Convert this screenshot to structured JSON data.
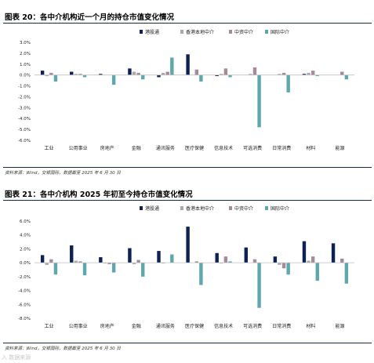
{
  "colors": {
    "hk_connect": "#0d2155",
    "hk_local": "#a9a9a9",
    "chinese": "#a48a9a",
    "intl": "#5ea8ad"
  },
  "figures": [
    {
      "title": "图表 20：各中介机构近一个月的持仓市值变化情况",
      "source": "资料来源：Wind，交银国际，数据截至 2025 年 6 月 30 日"
    },
    {
      "title": "图表 21：各中介机构 2025 年初至今持仓市值变化情况",
      "source": "资料来源：Wind，交银国际，数据截至 2025 年 6 月 30 日"
    }
  ],
  "watermark": "入 数据来源",
  "chart_data": [
    {
      "type": "bar",
      "categories": [
        "工业",
        "公用事业",
        "房地产",
        "金融",
        "通讯服务",
        "医疗保健",
        "信息技术",
        "可选消费",
        "日常消费",
        "材料",
        "能源"
      ],
      "series": [
        {
          "name": "港股通",
          "values": [
            0.4,
            0.3,
            0.1,
            0.6,
            -0.2,
            1.9,
            -0.1,
            0.0,
            0.0,
            0.1,
            0.0
          ]
        },
        {
          "name": "香港本地中介",
          "values": [
            -0.1,
            0.1,
            0.0,
            0.3,
            0.2,
            0.0,
            0.1,
            0.1,
            0.1,
            0.2,
            0.0
          ]
        },
        {
          "name": "中资中介",
          "values": [
            0.2,
            0.1,
            0.0,
            0.2,
            0.3,
            0.5,
            0.6,
            0.7,
            0.2,
            0.4,
            0.3
          ]
        },
        {
          "name": "国际中介",
          "values": [
            -0.6,
            -0.2,
            -0.9,
            -0.4,
            1.6,
            -0.6,
            -0.2,
            -4.8,
            -1.6,
            -0.1,
            -0.4
          ]
        }
      ],
      "ylim": [
        -6,
        3
      ],
      "yticks": [
        "3.0%",
        "2.0%",
        "1.0%",
        "0.0%",
        "-1.0%",
        "-2.0%",
        "-3.0%",
        "-4.0%",
        "-5.0%",
        "-6.0%"
      ],
      "legend": "top",
      "grid": false
    },
    {
      "type": "bar",
      "categories": [
        "工业",
        "公用事业",
        "房地产",
        "金融",
        "通讯服务",
        "医疗保健",
        "信息技术",
        "可选消费",
        "日常消费",
        "材料",
        "能源"
      ],
      "series": [
        {
          "name": "港股通",
          "values": [
            1.1,
            2.5,
            0.8,
            2.1,
            1.7,
            5.2,
            1.4,
            2.2,
            0.9,
            3.1,
            2.8
          ]
        },
        {
          "name": "香港本地中介",
          "values": [
            -0.3,
            0.3,
            -0.1,
            -0.2,
            -0.1,
            0.0,
            -0.1,
            0.0,
            -0.3,
            0.3,
            0.0
          ]
        },
        {
          "name": "中资中介",
          "values": [
            0.5,
            0.2,
            -0.2,
            0.4,
            0.0,
            0.2,
            0.9,
            0.5,
            -0.8,
            0.9,
            0.6
          ]
        },
        {
          "name": "国际中介",
          "values": [
            -1.7,
            -1.8,
            -1.4,
            -2.0,
            1.2,
            -3.2,
            0.2,
            -6.5,
            -1.7,
            -2.6,
            -3.0
          ]
        }
      ],
      "ylim": [
        -8,
        6
      ],
      "yticks": [
        "6.0%",
        "4.0%",
        "2.0%",
        "0.0%",
        "-2.0%",
        "-4.0%",
        "-6.0%",
        "-8.0%"
      ],
      "legend": "top",
      "grid": false
    }
  ]
}
